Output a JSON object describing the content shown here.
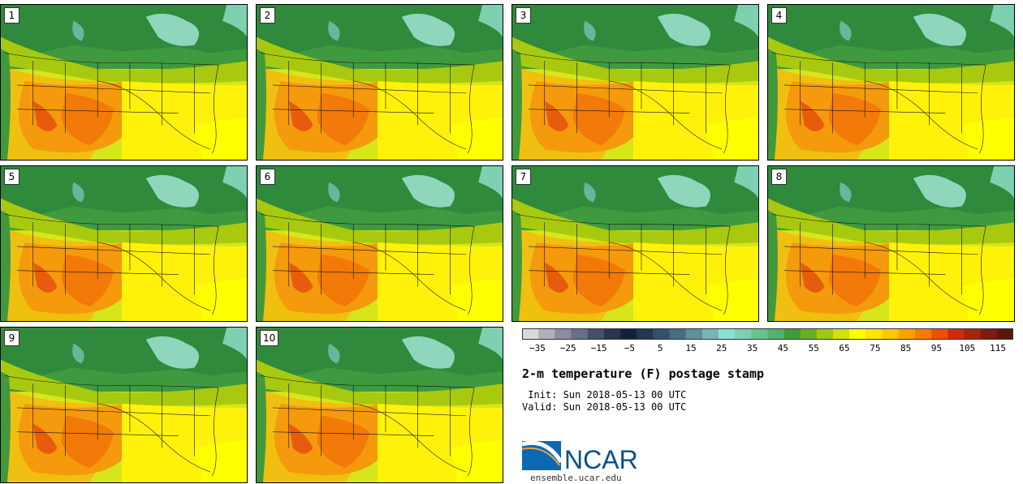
{
  "panels": [
    {
      "label": "1"
    },
    {
      "label": "2"
    },
    {
      "label": "3"
    },
    {
      "label": "4"
    },
    {
      "label": "5"
    },
    {
      "label": "6"
    },
    {
      "label": "7"
    },
    {
      "label": "8"
    },
    {
      "label": "9"
    },
    {
      "label": "10"
    }
  ],
  "colorbar": {
    "colors": [
      "#d8d8d8",
      "#b0b0b8",
      "#8a8d9e",
      "#66708a",
      "#46506c",
      "#2a3450",
      "#14203a",
      "#233652",
      "#33506a",
      "#466d82",
      "#5f8f99",
      "#7ab4b5",
      "#8edfd3",
      "#7fd0b0",
      "#68c290",
      "#55b070",
      "#43993a",
      "#6aad29",
      "#a0c916",
      "#d2e20a",
      "#ffff00",
      "#fde601",
      "#ffc800",
      "#ffa200",
      "#ff7a00",
      "#f04f05",
      "#d02a0a",
      "#a8230c",
      "#7c1d0e",
      "#5a170c"
    ],
    "tick_labels": [
      "−35",
      "−25",
      "−15",
      "−5",
      "5",
      "15",
      "25",
      "35",
      "45",
      "55",
      "65",
      "75",
      "85",
      "95",
      "105",
      "115"
    ],
    "range": [
      -40,
      120
    ],
    "tick_values": [
      -35,
      -25,
      -15,
      -5,
      5,
      15,
      25,
      35,
      45,
      55,
      65,
      75,
      85,
      95,
      105,
      115
    ]
  },
  "title": "2-m temperature (F) postage stamp",
  "init_text": " Init: Sun 2018-05-13 00 UTC",
  "valid_text": "Valid: Sun 2018-05-13 00 UTC",
  "logo": {
    "text": "NCAR",
    "color_blue": "#0a4f8a",
    "color_arc": "#2b7bc0"
  },
  "site": "ensemble.ucar.edu"
}
